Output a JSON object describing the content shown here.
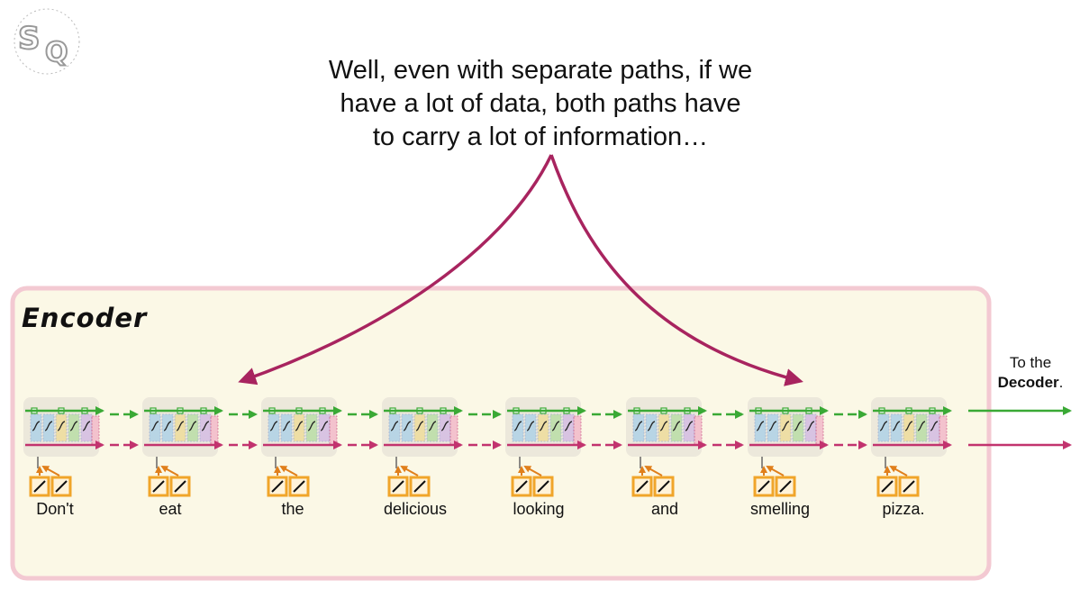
{
  "caption": {
    "line1": "Well, even with separate paths, if we",
    "line2": "have a lot of data, both paths have",
    "line3": "to carry a lot of information…"
  },
  "encoder_label": "Encoder",
  "words": [
    "Don't",
    "eat",
    "the",
    "delicious",
    "looking",
    "and",
    "smelling",
    "pizza."
  ],
  "output_note": {
    "prefix": "To the",
    "emphasis": "Decoder",
    "suffix": "."
  },
  "logo_text": "SQ",
  "colors": {
    "long_term_path": "#3aa935",
    "short_term_path": "#c2336e",
    "annotation_arrow": "#a8245f",
    "encoder_panel": "#fbf8e6",
    "encoder_border": "#f3c9d2",
    "embedding_box": "#f0a52a"
  }
}
